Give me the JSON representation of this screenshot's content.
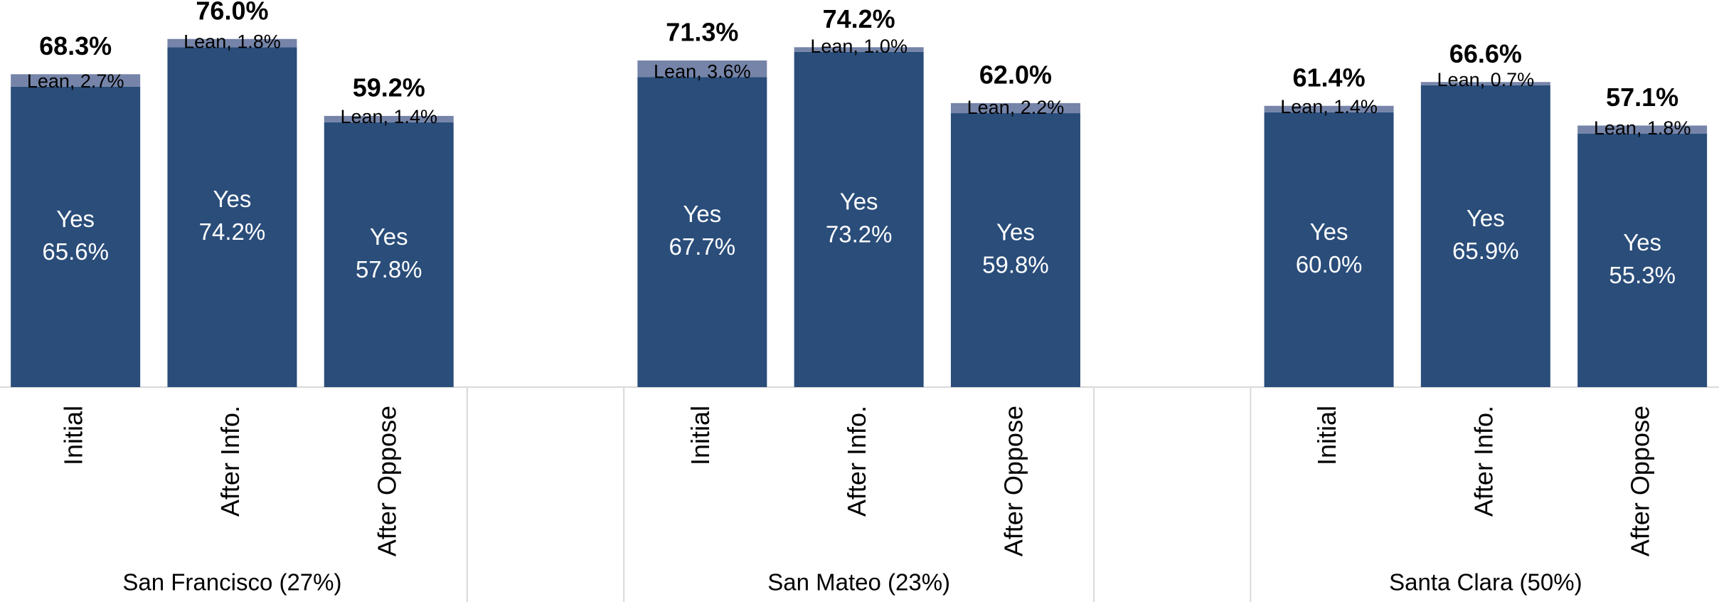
{
  "chart_data": {
    "type": "stacked_bar",
    "categories": [
      "Initial",
      "After Info.",
      "After Oppose",
      null,
      "Initial",
      "After Info.",
      "After Oppose",
      null,
      "Initial",
      "After Info.",
      "After Oppose"
    ],
    "groups": [
      "San Francisco (27%)",
      "San Mateo (23%)",
      "Santa Clara (50%)"
    ],
    "series": [
      {
        "name": "Yes",
        "color": "#2a4d7a",
        "values": [
          65.6,
          74.2,
          57.8,
          null,
          67.7,
          73.2,
          59.8,
          null,
          60.0,
          65.9,
          55.3
        ],
        "value_labels": [
          "65.6%",
          "74.2%",
          "57.8%",
          null,
          "67.7%",
          "73.2%",
          "59.8%",
          null,
          "60.0%",
          "65.9%",
          "55.3%"
        ]
      },
      {
        "name": "Lean",
        "color": "#7584a8",
        "values": [
          2.7,
          1.8,
          1.4,
          null,
          3.6,
          1.0,
          2.2,
          null,
          1.4,
          0.7,
          1.8
        ],
        "value_labels": [
          "Lean, 2.7%",
          "Lean, 1.8%",
          "Lean, 1.4%",
          null,
          "Lean, 3.6%",
          "Lean, 1.0%",
          "Lean, 2.2%",
          null,
          "Lean, 1.4%",
          "Lean, 0.7%",
          "Lean, 1.8%"
        ]
      }
    ],
    "totals": [
      68.3,
      76.0,
      59.2,
      null,
      71.3,
      74.2,
      62.0,
      null,
      61.4,
      66.6,
      57.1
    ],
    "total_labels": [
      "68.3%",
      "76.0%",
      "59.2%",
      null,
      "71.3%",
      "74.2%",
      "62.0%",
      null,
      "61.4%",
      "66.6%",
      "57.1%"
    ],
    "ylim": [
      0,
      80
    ]
  }
}
